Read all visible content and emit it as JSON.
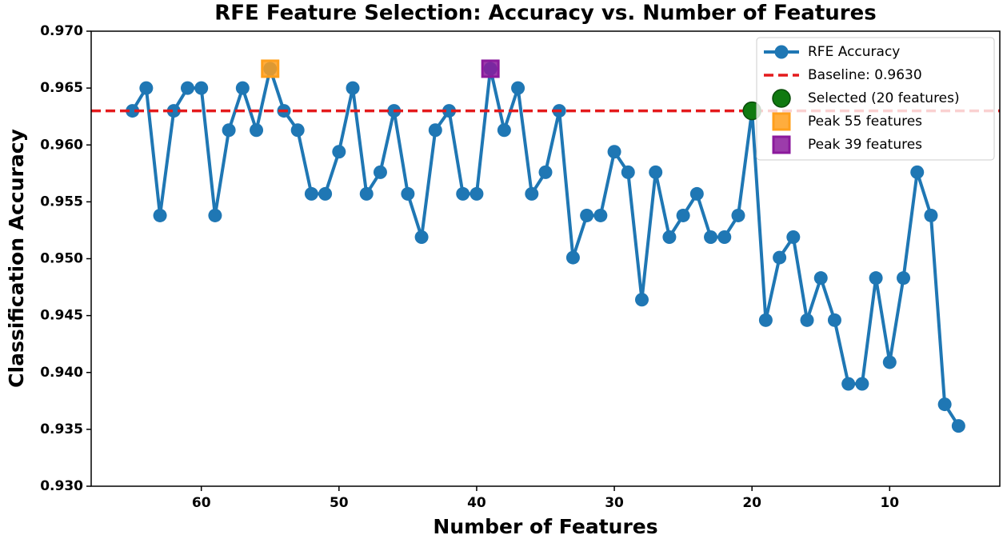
{
  "chart_data": {
    "type": "line",
    "title": "RFE Feature Selection: Accuracy vs. Number of Features",
    "x_label": "Number of Features",
    "y_label": "Classification Accuracy",
    "x": [
      65,
      64,
      63,
      62,
      61,
      60,
      59,
      58,
      57,
      56,
      55,
      54,
      53,
      52,
      51,
      50,
      49,
      48,
      47,
      46,
      45,
      44,
      43,
      42,
      41,
      40,
      39,
      38,
      37,
      36,
      35,
      34,
      33,
      32,
      31,
      30,
      29,
      28,
      27,
      26,
      25,
      24,
      23,
      22,
      21,
      20,
      19,
      18,
      17,
      16,
      15,
      14,
      13,
      12,
      11,
      10,
      9,
      8,
      7,
      6,
      5
    ],
    "series": [
      {
        "name": "RFE Accuracy",
        "color": "#1f77b4",
        "values": [
          0.963,
          0.965,
          0.9538,
          0.963,
          0.965,
          0.965,
          0.9538,
          0.9613,
          0.965,
          0.9613,
          0.9667,
          0.963,
          0.9613,
          0.9557,
          0.9557,
          0.9594,
          0.965,
          0.9557,
          0.9576,
          0.963,
          0.9557,
          0.9519,
          0.9613,
          0.963,
          0.9557,
          0.9557,
          0.9667,
          0.9613,
          0.965,
          0.9557,
          0.9576,
          0.963,
          0.9501,
          0.9538,
          0.9538,
          0.9594,
          0.9576,
          0.9464,
          0.9576,
          0.9519,
          0.9538,
          0.9557,
          0.9519,
          0.9519,
          0.9538,
          0.963,
          0.9446,
          0.9501,
          0.9519,
          0.9446,
          0.9483,
          0.9446,
          0.939,
          0.939,
          0.9483,
          0.9409,
          0.9483,
          0.9576,
          0.9538,
          0.9372,
          0.9353
        ]
      }
    ],
    "baseline": {
      "label": "Baseline: 0.9630",
      "value": 0.963,
      "color": "#e41a1c"
    },
    "markers": [
      {
        "name": "Selected (20 features)",
        "x": 20,
        "y": 0.963,
        "color": "#107a10",
        "shape": "circle"
      },
      {
        "name": "Peak 55 features",
        "x": 55,
        "y": 0.9667,
        "color": "#ff9f1c",
        "shape": "square"
      },
      {
        "name": "Peak 39 features",
        "x": 39,
        "y": 0.9667,
        "color": "#8b1a9c",
        "shape": "square"
      }
    ],
    "xlim": [
      68,
      2
    ],
    "xticks": [
      60,
      50,
      40,
      30,
      20,
      10
    ],
    "ylim": [
      0.93,
      0.97
    ],
    "yticks": [
      {
        "value": 0.93,
        "label": "0.930"
      },
      {
        "value": 0.935,
        "label": "0.935"
      },
      {
        "value": 0.94,
        "label": "0.940"
      },
      {
        "value": 0.945,
        "label": "0.945"
      },
      {
        "value": 0.95,
        "label": "0.950"
      },
      {
        "value": 0.955,
        "label": "0.955"
      },
      {
        "value": 0.96,
        "label": "0.960"
      },
      {
        "value": 0.965,
        "label": "0.965"
      },
      {
        "value": 0.97,
        "label": "0.970"
      }
    ],
    "grid": false,
    "legend": "upper right"
  }
}
